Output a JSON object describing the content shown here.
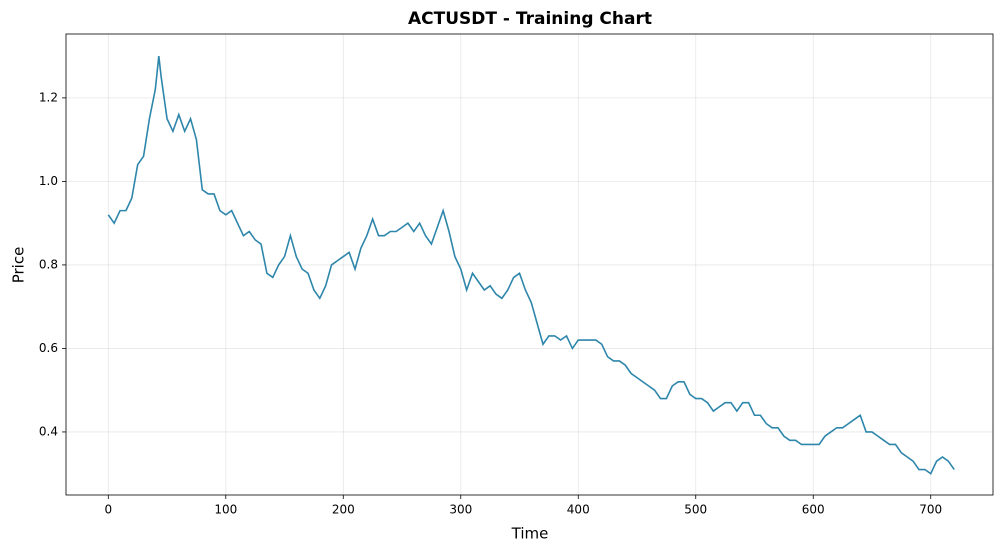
{
  "chart_data": {
    "type": "line",
    "title": "ACTUSDT - Training Chart",
    "x_label": "Time",
    "y_label": "Price",
    "x": [
      0,
      5,
      10,
      15,
      20,
      25,
      30,
      35,
      40,
      43,
      45,
      50,
      55,
      60,
      65,
      70,
      75,
      80,
      85,
      90,
      95,
      100,
      105,
      110,
      115,
      120,
      125,
      130,
      135,
      140,
      145,
      150,
      155,
      160,
      165,
      170,
      175,
      180,
      185,
      190,
      195,
      200,
      205,
      210,
      215,
      220,
      225,
      230,
      235,
      240,
      245,
      250,
      255,
      260,
      265,
      270,
      275,
      280,
      285,
      290,
      295,
      300,
      305,
      310,
      315,
      320,
      325,
      330,
      335,
      340,
      345,
      350,
      355,
      360,
      365,
      370,
      375,
      380,
      385,
      390,
      395,
      400,
      405,
      410,
      415,
      420,
      425,
      430,
      435,
      440,
      445,
      450,
      455,
      460,
      465,
      470,
      475,
      480,
      485,
      490,
      495,
      500,
      505,
      510,
      515,
      520,
      525,
      530,
      535,
      540,
      545,
      550,
      555,
      560,
      565,
      570,
      575,
      580,
      585,
      590,
      595,
      600,
      605,
      610,
      615,
      620,
      625,
      630,
      635,
      640,
      645,
      650,
      655,
      660,
      665,
      670,
      675,
      680,
      685,
      690,
      695,
      700,
      705,
      710,
      715,
      720
    ],
    "series": [
      {
        "name": "Price",
        "color": "#2e86ab",
        "values": [
          0.92,
          0.9,
          0.93,
          0.93,
          0.96,
          1.04,
          1.06,
          1.15,
          1.22,
          1.3,
          1.25,
          1.15,
          1.12,
          1.16,
          1.12,
          1.15,
          1.1,
          0.98,
          0.97,
          0.97,
          0.93,
          0.92,
          0.93,
          0.9,
          0.87,
          0.88,
          0.86,
          0.85,
          0.78,
          0.77,
          0.8,
          0.82,
          0.87,
          0.82,
          0.79,
          0.78,
          0.74,
          0.72,
          0.75,
          0.8,
          0.81,
          0.82,
          0.83,
          0.79,
          0.84,
          0.87,
          0.91,
          0.87,
          0.87,
          0.88,
          0.88,
          0.89,
          0.9,
          0.88,
          0.9,
          0.87,
          0.85,
          0.89,
          0.93,
          0.88,
          0.82,
          0.79,
          0.74,
          0.78,
          0.76,
          0.74,
          0.75,
          0.73,
          0.72,
          0.74,
          0.77,
          0.78,
          0.74,
          0.71,
          0.66,
          0.61,
          0.63,
          0.63,
          0.62,
          0.63,
          0.6,
          0.62,
          0.62,
          0.62,
          0.62,
          0.61,
          0.58,
          0.57,
          0.57,
          0.56,
          0.54,
          0.53,
          0.52,
          0.51,
          0.5,
          0.48,
          0.48,
          0.51,
          0.52,
          0.52,
          0.49,
          0.48,
          0.48,
          0.47,
          0.45,
          0.46,
          0.47,
          0.47,
          0.45,
          0.47,
          0.47,
          0.44,
          0.44,
          0.42,
          0.41,
          0.41,
          0.39,
          0.38,
          0.38,
          0.37,
          0.37,
          0.37,
          0.37,
          0.39,
          0.4,
          0.41,
          0.41,
          0.42,
          0.43,
          0.44,
          0.4,
          0.4,
          0.39,
          0.38,
          0.37,
          0.37,
          0.35,
          0.34,
          0.33,
          0.31,
          0.31,
          0.3,
          0.33,
          0.34,
          0.33,
          0.31
        ]
      }
    ],
    "xlim": [
      -36,
      753
    ],
    "ylim": [
      0.249,
      1.353
    ],
    "xticks": [
      0,
      100,
      200,
      300,
      400,
      500,
      600,
      700
    ],
    "yticks": [
      {
        "value": 0.4,
        "label": "0.4"
      },
      {
        "value": 0.6,
        "label": "0.6"
      },
      {
        "value": 0.8,
        "label": "0.8"
      },
      {
        "value": 1.0,
        "label": "1.0"
      },
      {
        "value": 1.2,
        "label": "1.2"
      }
    ],
    "grid": true
  }
}
